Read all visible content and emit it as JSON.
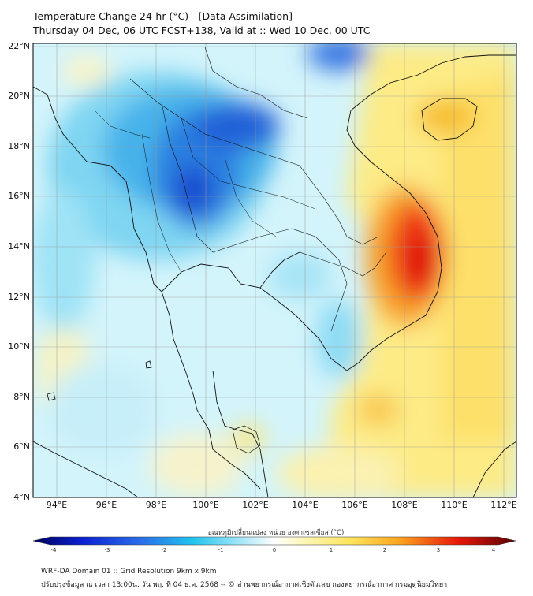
{
  "header": {
    "title_line1": "Temperature Change 24-hr (°C) - [Data Assimilation]",
    "title_line2": "Thursday 04 Dec, 06 UTC FCST+138, Valid at :: Wed 10 Dec, 00 UTC"
  },
  "map": {
    "lat_labels": [
      "22°N",
      "20°N",
      "18°N",
      "16°N",
      "14°N",
      "12°N",
      "10°N",
      "8°N",
      "6°N",
      "4°N"
    ],
    "lon_labels": [
      "94°E",
      "96°E",
      "98°E",
      "100°E",
      "102°E",
      "104°E",
      "106°E",
      "108°E",
      "110°E",
      "112°E"
    ],
    "lat_range": [
      4,
      22.3
    ],
    "lon_range": [
      93,
      112.5
    ]
  },
  "colorbar": {
    "title": "อุณหภูมิเปลี่ยนแปลง หน่วย องศาเซลเซียส (°C)",
    "ticks": [
      "-4",
      "-3",
      "-2",
      "-1",
      "0",
      "1",
      "2",
      "3",
      "4"
    ],
    "range": [
      -4,
      4
    ]
  },
  "footer": {
    "line1": "WRF-DA Domain 01 :: Grid Resolution 9km x 9km",
    "line2": "ปรับปรุงข้อมูล ณ เวลา 13:00น. วัน พฤ. ที่ 04 ธ.ค. 2568 -- © ส่วนพยากรณ์อากาศเชิงตัวเลข กองพยากรณ์อากาศ กรมอุตุนิยมวิทยา"
  },
  "colors": {
    "frame": "#000000",
    "grid": "#9a9a9a",
    "coast": "#000000"
  }
}
